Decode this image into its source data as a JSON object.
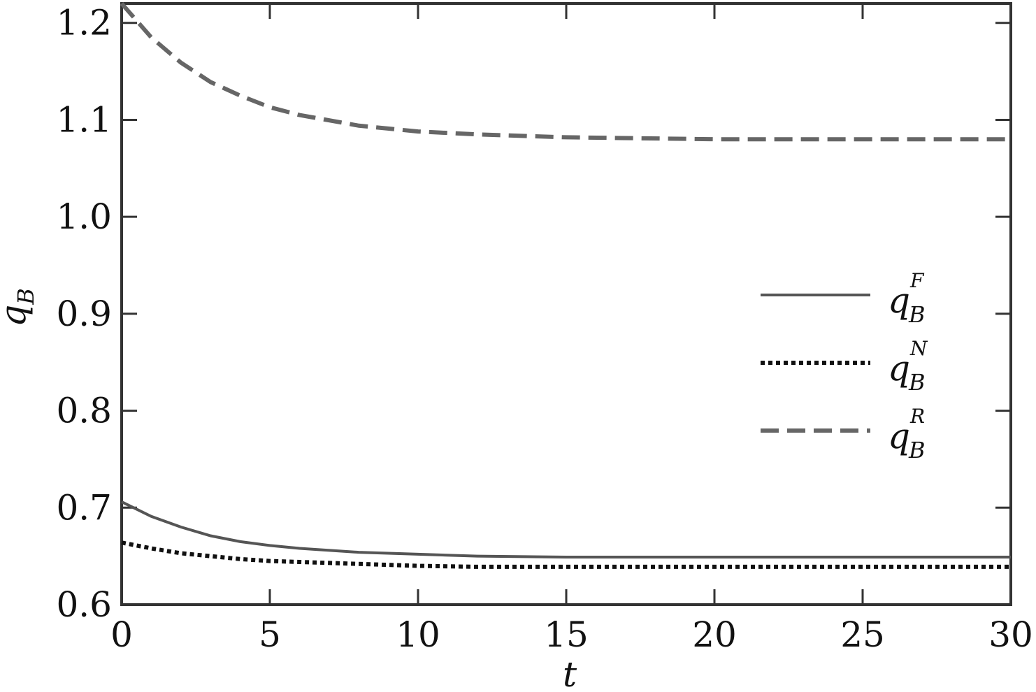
{
  "chart_data": {
    "type": "line",
    "xlabel": "t",
    "ylabel": "q",
    "ylabel_sub": "B",
    "x": [
      0,
      1,
      2,
      3,
      4,
      5,
      6,
      8,
      10,
      12,
      15,
      20,
      25,
      30
    ],
    "series": [
      {
        "name": "q",
        "name_sub": "B",
        "name_sup": "F",
        "color": "#555555",
        "dash": "solid",
        "values": [
          0.706,
          0.691,
          0.68,
          0.671,
          0.665,
          0.661,
          0.658,
          0.654,
          0.652,
          0.65,
          0.649,
          0.649,
          0.649,
          0.649
        ]
      },
      {
        "name": "q",
        "name_sub": "B",
        "name_sup": "N",
        "color": "#111111",
        "dash": "dotted",
        "values": [
          0.664,
          0.658,
          0.653,
          0.65,
          0.647,
          0.645,
          0.644,
          0.642,
          0.64,
          0.639,
          0.639,
          0.639,
          0.639,
          0.639
        ]
      },
      {
        "name": "q",
        "name_sub": "B",
        "name_sup": "R",
        "color": "#666666",
        "dash": "dashed",
        "values": [
          1.22,
          1.185,
          1.159,
          1.139,
          1.125,
          1.113,
          1.105,
          1.094,
          1.088,
          1.085,
          1.082,
          1.08,
          1.08,
          1.08
        ]
      }
    ],
    "xlim": [
      0,
      30
    ],
    "xticks": [
      0,
      5,
      10,
      15,
      20,
      25,
      30
    ],
    "ylim": [
      0.6,
      1.22
    ],
    "yticks": [
      0.6,
      0.7,
      0.8,
      0.9,
      {
        "value": 1,
        "label": "1.0"
      },
      1.1,
      1.2
    ],
    "legend": "right"
  }
}
